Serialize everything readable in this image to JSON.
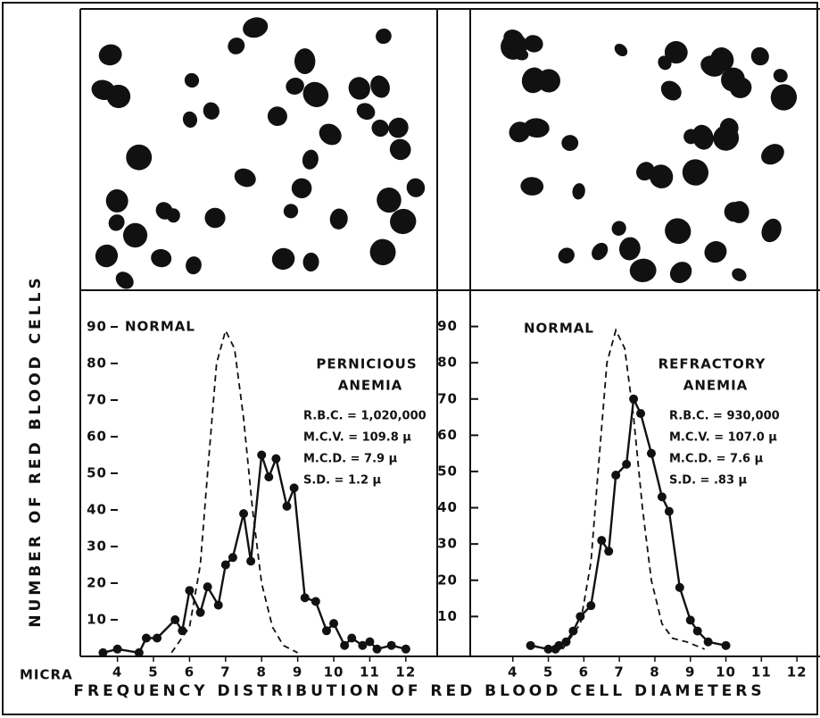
{
  "figure": {
    "y_label": "NUMBER OF RED BLOOD CELLS",
    "x_unit": "MICRA",
    "caption": "FREQUENCY DISTRIBUTION OF RED BLOOD CELL DIAMETERS"
  },
  "chart_data": [
    {
      "type": "line",
      "label_lines": [
        "PERNICIOUS",
        "ANEMIA"
      ],
      "annotations": [
        "R.B.C. = 1,020,000",
        "M.C.V. = 109.8 μ",
        "M.C.D. = 7.9 μ",
        "S.D. = 1.2 μ"
      ],
      "xlim": [
        2.97,
        12.87
      ],
      "ylim": [
        0,
        100
      ],
      "xticks": [
        4,
        5,
        6,
        7,
        8,
        9,
        10,
        11,
        12
      ],
      "yticks": [
        10,
        20,
        30,
        40,
        50,
        60,
        70,
        80,
        90
      ],
      "series": [
        {
          "name": "NORMAL",
          "color": "#111",
          "style": "dashed",
          "x": [
            5.5,
            6.0,
            6.3,
            6.5,
            6.75,
            7.0,
            7.25,
            7.5,
            7.75,
            8.0,
            8.3,
            8.6,
            9.0
          ],
          "values": [
            1,
            8,
            25,
            50,
            80,
            89,
            84,
            65,
            40,
            20,
            8,
            3,
            1
          ]
        },
        {
          "color": "#111",
          "style": "solid",
          "markers": true,
          "x": [
            3.6,
            4.0,
            4.6,
            4.8,
            5.1,
            5.6,
            5.8,
            6.0,
            6.3,
            6.5,
            6.8,
            7.0,
            7.2,
            7.5,
            7.7,
            8.0,
            8.2,
            8.4,
            8.7,
            8.9,
            9.2,
            9.5,
            9.8,
            10.0,
            10.3,
            10.5,
            10.8,
            11.0,
            11.2,
            11.6,
            12.0
          ],
          "values": [
            1,
            2,
            1,
            5,
            5,
            10,
            7,
            18,
            12,
            19,
            14,
            25,
            27,
            39,
            26,
            55,
            49,
            54,
            41,
            46,
            16,
            15,
            7,
            9,
            3,
            5,
            3,
            4,
            2,
            3,
            2
          ]
        }
      ]
    },
    {
      "type": "line",
      "label_lines": [
        "REFRACTORY",
        "ANEMIA"
      ],
      "annotations": [
        "R.B.C. = 930,000",
        "M.C.V. = 107.0 μ",
        "M.C.D. = 7.6 μ",
        "S.D. = .83 μ"
      ],
      "xlim": [
        2.8,
        12.65
      ],
      "ylim": [
        -1,
        100
      ],
      "xticks": [
        4,
        5,
        6,
        7,
        8,
        9,
        10,
        11,
        12
      ],
      "yticks": [
        10,
        20,
        30,
        40,
        50,
        60,
        70,
        80,
        90
      ],
      "series": [
        {
          "name": "NORMAL",
          "color": "#111",
          "style": "dashed",
          "x": [
            5.4,
            5.9,
            6.2,
            6.4,
            6.65,
            6.9,
            7.15,
            7.4,
            7.65,
            7.9,
            8.2,
            8.5,
            8.9,
            9.4
          ],
          "values": [
            1,
            8,
            25,
            50,
            80,
            89,
            84,
            65,
            40,
            20,
            8,
            4,
            3,
            1
          ]
        },
        {
          "color": "#111",
          "style": "solid",
          "markers": true,
          "x": [
            4.5,
            5.0,
            5.2,
            5.3,
            5.5,
            5.7,
            5.9,
            6.2,
            6.5,
            6.7,
            6.9,
            7.2,
            7.4,
            7.6,
            7.9,
            8.2,
            8.4,
            8.7,
            9.0,
            9.2,
            9.5,
            10.0
          ],
          "values": [
            2,
            1,
            1,
            2,
            3,
            6,
            10,
            13,
            31,
            28,
            49,
            52,
            70,
            66,
            55,
            43,
            39,
            18,
            9,
            6,
            3,
            2
          ]
        }
      ]
    }
  ]
}
